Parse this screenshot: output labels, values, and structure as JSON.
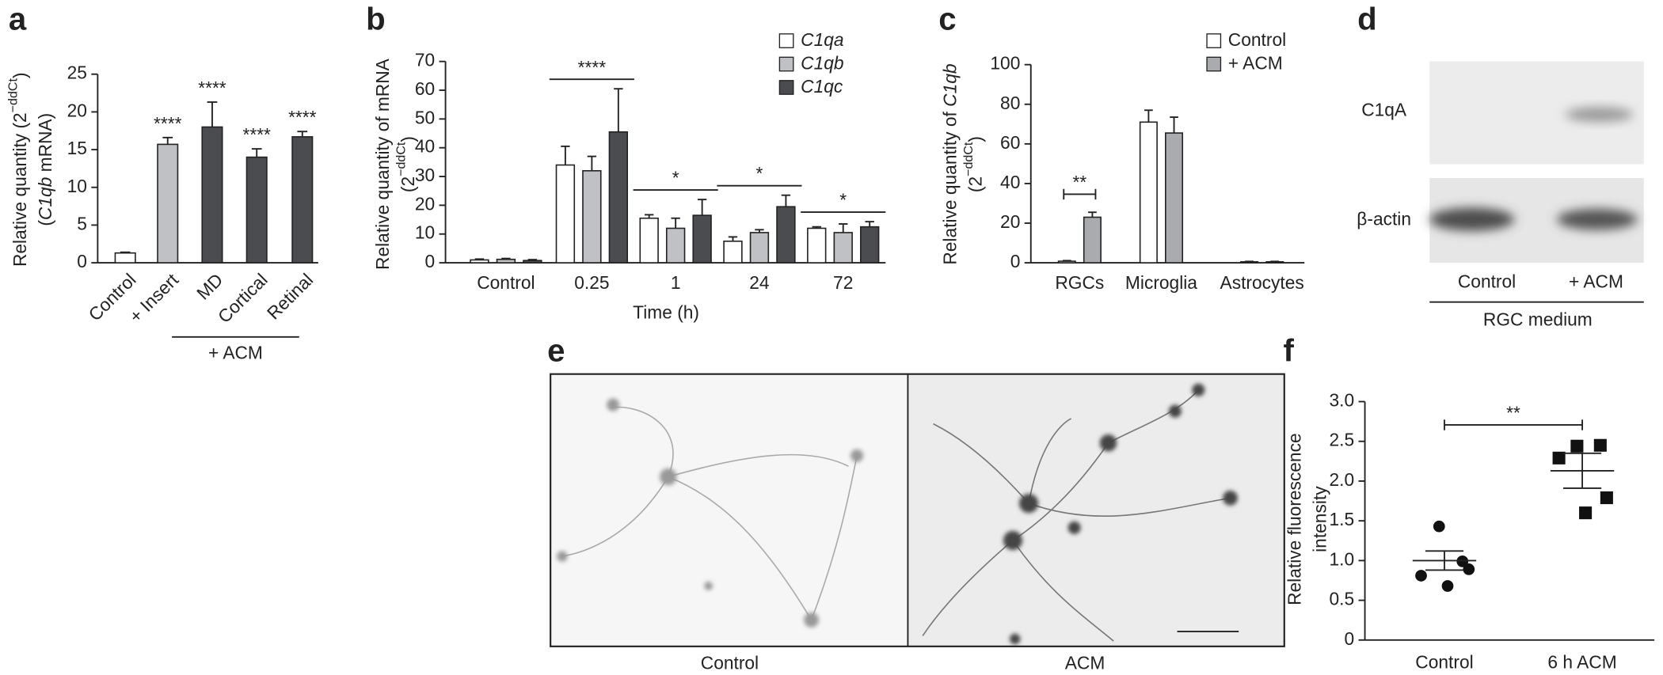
{
  "chart_data": [
    {
      "label": "a",
      "type": "bar",
      "ylabel": [
        "Relative quantity (2",
        "−ddCt",
        ")"
      ],
      "ylabel2": [
        "(",
        "C1qb",
        " mRNA)"
      ],
      "categories": [
        "Control",
        "+ Insert",
        "MD",
        "Cortical",
        "Retinal"
      ],
      "values": [
        1.3,
        15.7,
        18,
        14,
        16.7
      ],
      "errors": [
        0.1,
        0.9,
        3.3,
        1.1,
        0.7
      ],
      "colors": [
        "#ffffff",
        "#bfc1c4",
        "#4a4c50",
        "#4a4c50",
        "#4a4c50"
      ],
      "annotations": [
        null,
        "****",
        "****",
        "****",
        "****"
      ],
      "group_label": "+ ACM",
      "ylim": [
        0,
        25
      ],
      "yticks": [
        0,
        5,
        10,
        15,
        20,
        25
      ]
    },
    {
      "label": "b",
      "type": "bar",
      "ylabel": [
        "Relative quantity of mRNA"
      ],
      "ylabel2": [
        "(2",
        "−ddCt",
        ")"
      ],
      "xlabel": "Time (h)",
      "categories": [
        "Control",
        "0.25",
        "1",
        "24",
        "72"
      ],
      "series": [
        {
          "name": "C1qa",
          "color": "#ffffff",
          "values": [
            1,
            34,
            15.5,
            7.5,
            12
          ],
          "errors": [
            0.3,
            6.5,
            1.2,
            1.5,
            0.5
          ]
        },
        {
          "name": "C1qb",
          "color": "#bfc1c4",
          "values": [
            1.2,
            32,
            12,
            10.5,
            10.5
          ],
          "errors": [
            0.3,
            5,
            3.5,
            1,
            3
          ]
        },
        {
          "name": "C1qc",
          "color": "#4a4c50",
          "values": [
            0.8,
            45.5,
            16.5,
            19.5,
            12.5
          ],
          "errors": [
            0.3,
            15,
            5.5,
            4,
            1.8
          ]
        }
      ],
      "annotations": [
        null,
        "****",
        "*",
        "*",
        "*"
      ],
      "ylim": [
        0,
        70
      ],
      "yticks": [
        0,
        10,
        20,
        30,
        40,
        50,
        60,
        70
      ]
    },
    {
      "label": "c",
      "type": "bar",
      "ylabel": [
        "Relative quantity of ",
        "C1qb"
      ],
      "ylabel2": [
        "(2",
        "−ddCt",
        ")"
      ],
      "categories": [
        "RGCs",
        "Microglia",
        "Astrocytes"
      ],
      "series": [
        {
          "name": "Control",
          "color": "#ffffff",
          "values": [
            0.8,
            71,
            0.5
          ],
          "errors": [
            0.3,
            6,
            0.2
          ]
        },
        {
          "name": "+ ACM",
          "color": "#a9abae",
          "values": [
            23,
            65.5,
            0.5
          ],
          "errors": [
            2.5,
            8,
            0.2
          ]
        }
      ],
      "annotations": [
        "**",
        null,
        null
      ],
      "ylim": [
        0,
        100
      ],
      "yticks": [
        0,
        20,
        40,
        60,
        80,
        100
      ]
    },
    {
      "label": "f",
      "type": "strip",
      "ylabel": [
        "Relative fluorescence"
      ],
      "ylabel2": [
        "intensity"
      ],
      "categories": [
        "Control",
        "6 h ACM"
      ],
      "points": [
        [
          1.43,
          0.99,
          0.81,
          0.89,
          0.68
        ],
        [
          2.44,
          2.45,
          2.29,
          1.79,
          1.6
        ]
      ],
      "markers": [
        "circle",
        "square"
      ],
      "means": [
        1.0,
        2.13
      ],
      "errors": [
        0.12,
        0.22
      ],
      "annotation": "**",
      "ylim": [
        0,
        3.0
      ],
      "yticks": [
        0,
        0.5,
        {
          "value": 1.0,
          "label": "1.0"
        },
        1.5,
        {
          "value": 2.0,
          "label": "2.0"
        },
        2.5,
        {
          "value": 3.0,
          "label": "3.0"
        }
      ]
    }
  ],
  "blot": {
    "label": "d",
    "rows": [
      "C1qA",
      "β-actin"
    ],
    "lanes": [
      "Control",
      "+ ACM"
    ],
    "group": "RGC medium"
  },
  "micrographs": {
    "label": "e",
    "images": [
      "Control",
      "ACM"
    ]
  }
}
